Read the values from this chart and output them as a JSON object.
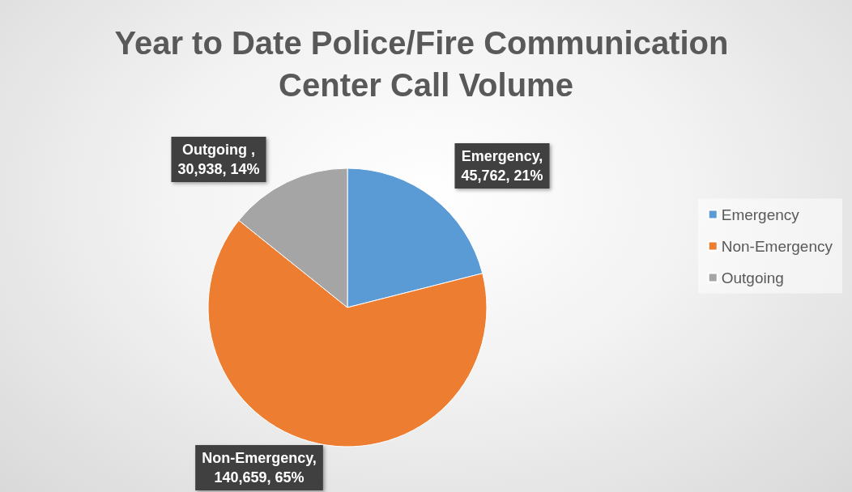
{
  "chart_data": {
    "type": "pie",
    "title": "Year to Date Police/Fire Communication Center Call Volume",
    "categories": [
      "Emergency",
      "Non-Emergency",
      "Outgoing"
    ],
    "values": [
      45762,
      140659,
      30938
    ],
    "colors": [
      "#5b9bd5",
      "#ed7d31",
      "#a5a5a5"
    ],
    "value_labels": [
      "Emergency,\n45,762, 21%",
      "Non-Emergency,\n140,659, 65%",
      "Outgoing ,\n30,938, 14%"
    ],
    "legend": "right"
  }
}
